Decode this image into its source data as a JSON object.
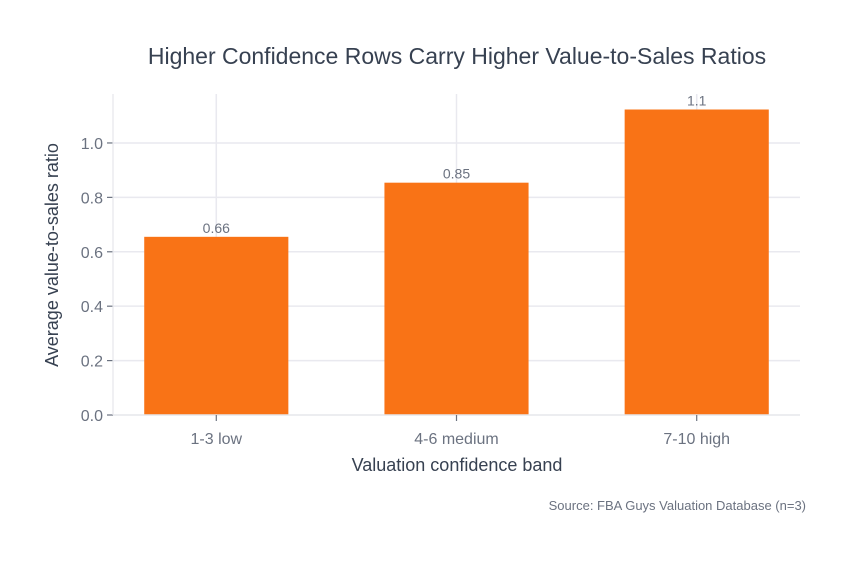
{
  "chart_data": {
    "type": "bar",
    "title": "Higher Confidence Rows Carry Higher Value-to-Sales Ratios",
    "xlabel": "Valuation confidence band",
    "ylabel": "Average value-to-sales ratio",
    "categories": [
      "1-3 low",
      "4-6 medium",
      "7-10 high"
    ],
    "values": [
      0.655,
      0.854,
      1.123
    ],
    "data_labels": [
      "0.66",
      "0.85",
      "1.1"
    ],
    "ylim": [
      0,
      1.18
    ],
    "yticks": [
      0,
      0.2,
      0.4,
      0.6,
      0.8,
      1.0
    ],
    "ytick_labels": [
      "0.0",
      "0.2",
      "0.4",
      "0.6",
      "0.8",
      "1.0"
    ],
    "grid": true,
    "bar_color": "#f97316",
    "source": "Source: FBA Guys Valuation Database (n=3)"
  }
}
